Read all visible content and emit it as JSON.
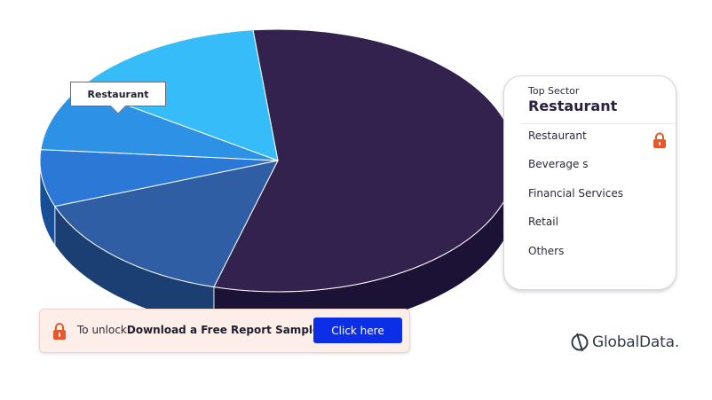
{
  "chart_data": {
    "type": "pie",
    "style": "3d",
    "slices": [
      {
        "label": "Restaurant",
        "value": 56,
        "color": "#33224e",
        "side_color": "#1c1235"
      },
      {
        "label": "Beverages",
        "value": 15,
        "color": "#2f5ea4",
        "side_color": "#1b3f73"
      },
      {
        "label": "Financial Services",
        "value": 7,
        "color": "#2b78d6",
        "side_color": "#174e96"
      },
      {
        "label": "Retail",
        "value": 8,
        "color": "#2d92e6",
        "side_color": "#155f9e"
      },
      {
        "label": "Others",
        "value": 14,
        "color": "#36bcf8",
        "side_color": "#134a66"
      }
    ],
    "highlighted": "Restaurant",
    "legend": {
      "kicker": "Top Sector",
      "top": "Restaurant",
      "items": [
        "Restaurant",
        "Beverage s",
        "Financial Services",
        "Retail",
        "Others"
      ],
      "placement": "right"
    }
  },
  "tooltip": {
    "label": "Restaurant"
  },
  "unlock": {
    "prefix": "To unlock",
    "strong": "Download a Free Report Sample",
    "button": "Click here"
  },
  "brand": {
    "name": "GlobalData.",
    "icon": "globaldata-logo-icon"
  },
  "colors": {
    "accent_lock": "#e8562a",
    "button": "#0b2ee6"
  }
}
